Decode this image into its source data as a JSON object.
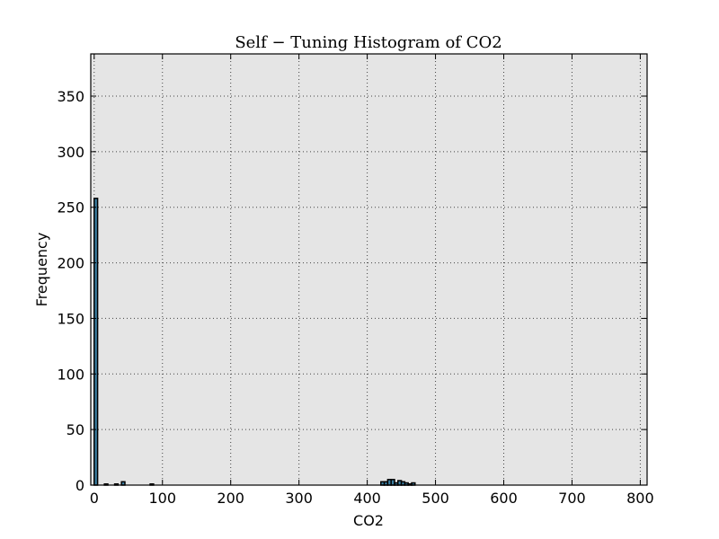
{
  "chart_data": {
    "type": "bar",
    "title": "Self − Tuning Histogram of CO2",
    "xlabel": "CO2",
    "ylabel": "Frequency",
    "xlim": [
      -5,
      810
    ],
    "ylim": [
      0,
      388
    ],
    "xticks": [
      0,
      100,
      200,
      300,
      400,
      500,
      600,
      700,
      800
    ],
    "yticks": [
      0,
      50,
      100,
      150,
      200,
      250,
      300,
      350
    ],
    "grid": true,
    "bin_width": 5,
    "bars": [
      {
        "x0": 0,
        "x1": 5,
        "value": 258
      },
      {
        "x0": 15,
        "x1": 20,
        "value": 1
      },
      {
        "x0": 30,
        "x1": 35,
        "value": 1
      },
      {
        "x0": 40,
        "x1": 45,
        "value": 3
      },
      {
        "x0": 82,
        "x1": 87,
        "value": 1
      },
      {
        "x0": 420,
        "x1": 425,
        "value": 3
      },
      {
        "x0": 425,
        "x1": 430,
        "value": 3
      },
      {
        "x0": 430,
        "x1": 435,
        "value": 5
      },
      {
        "x0": 435,
        "x1": 440,
        "value": 5
      },
      {
        "x0": 440,
        "x1": 445,
        "value": 2
      },
      {
        "x0": 445,
        "x1": 450,
        "value": 4
      },
      {
        "x0": 450,
        "x1": 455,
        "value": 3
      },
      {
        "x0": 455,
        "x1": 460,
        "value": 2
      },
      {
        "x0": 460,
        "x1": 465,
        "value": 1
      },
      {
        "x0": 465,
        "x1": 470,
        "value": 2
      }
    ]
  }
}
